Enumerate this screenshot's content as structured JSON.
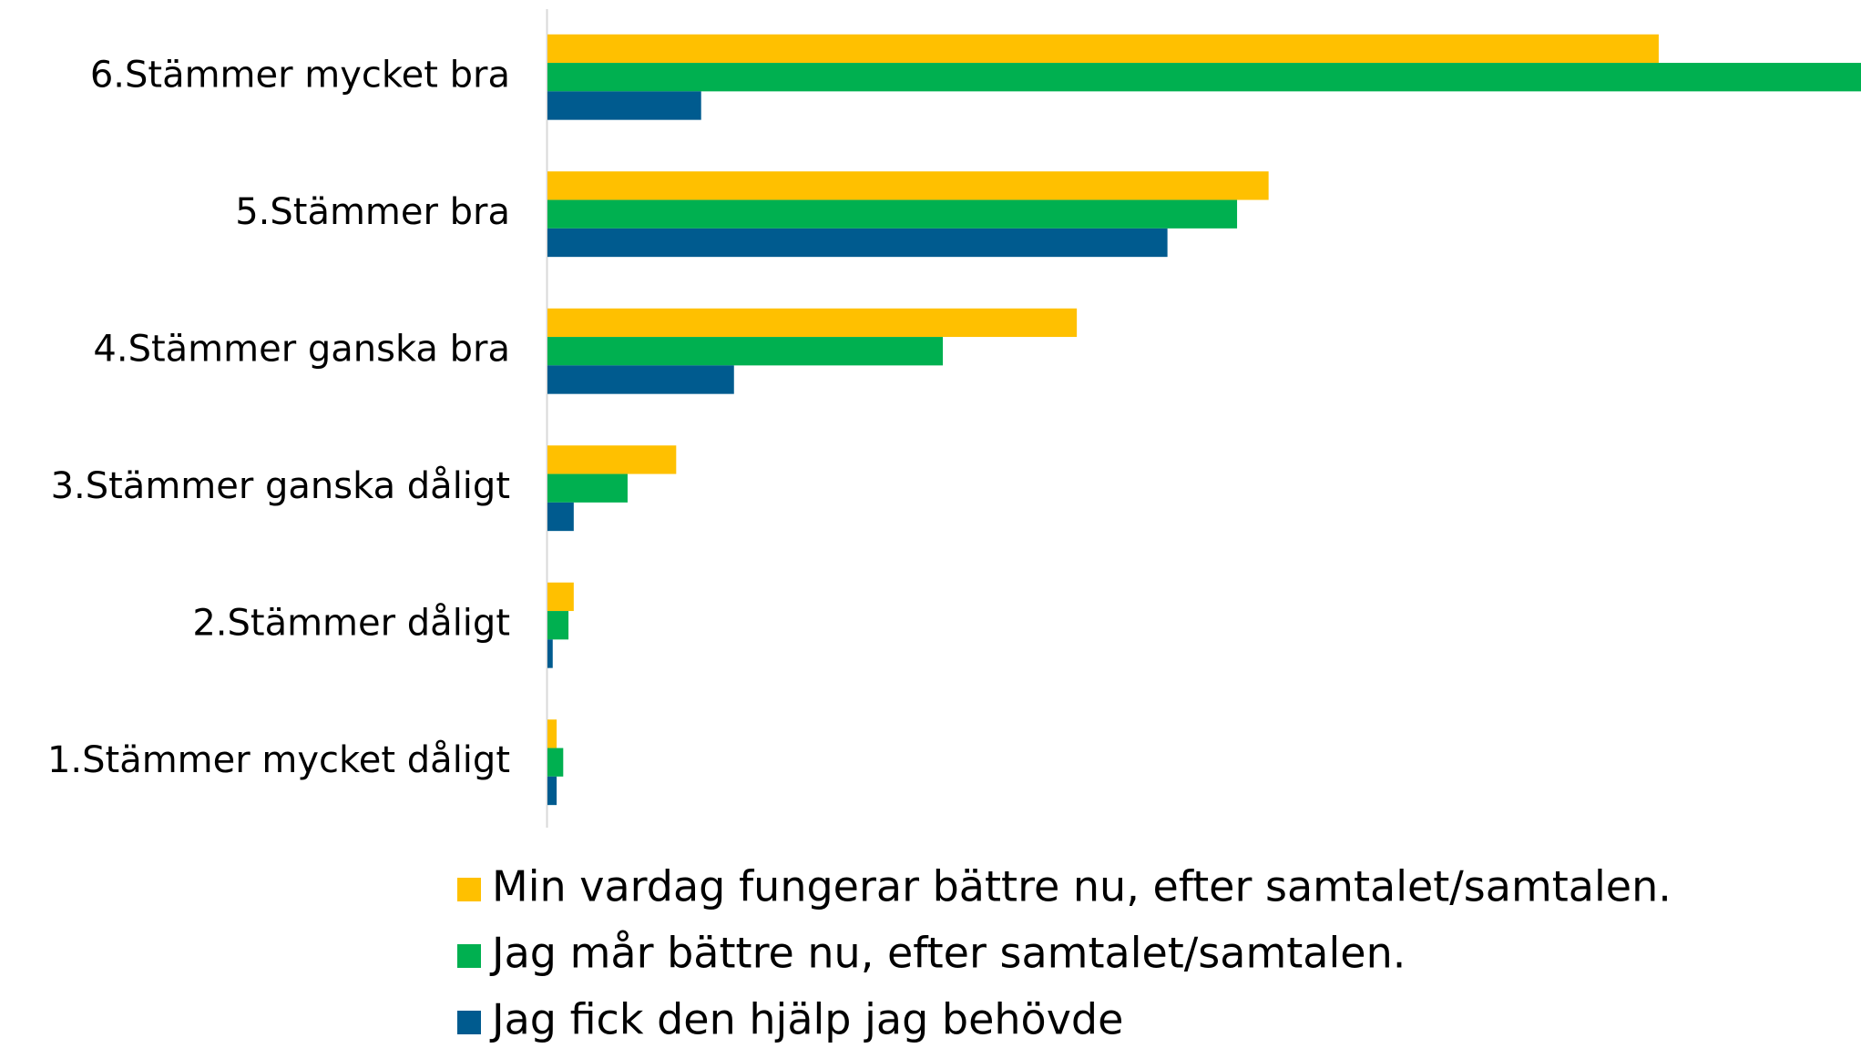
{
  "chart_data": {
    "type": "hbar",
    "categories": [
      "6.Stämmer mycket bra",
      "5.Stämmer bra",
      "4.Stämmer ganska bra",
      "3.Stämmer ganska dåligt",
      "2.Stämmer dåligt",
      "1.Stämmer mycket dåligt"
    ],
    "series": [
      {
        "name": "Min vardag fungerar bättre nu, efter samtalet/samtalen.",
        "color": "#FFC000",
        "values": [
          84.6,
          54.9,
          40.3,
          9.8,
          2.0,
          0.7
        ]
      },
      {
        "name": "Jag mår bättre nu, efter samtalet/samtalen.",
        "color": "#00B050",
        "values": [
          100,
          52.5,
          30.1,
          6.1,
          1.6,
          1.2
        ]
      },
      {
        "name": "Jag fick den hjälp jag behövde",
        "color": "#005B8F",
        "values": [
          11.7,
          47.2,
          14.2,
          2.0,
          0.4,
          0.7
        ]
      }
    ],
    "xlim": [
      0,
      100
    ],
    "legend": "bottom"
  }
}
